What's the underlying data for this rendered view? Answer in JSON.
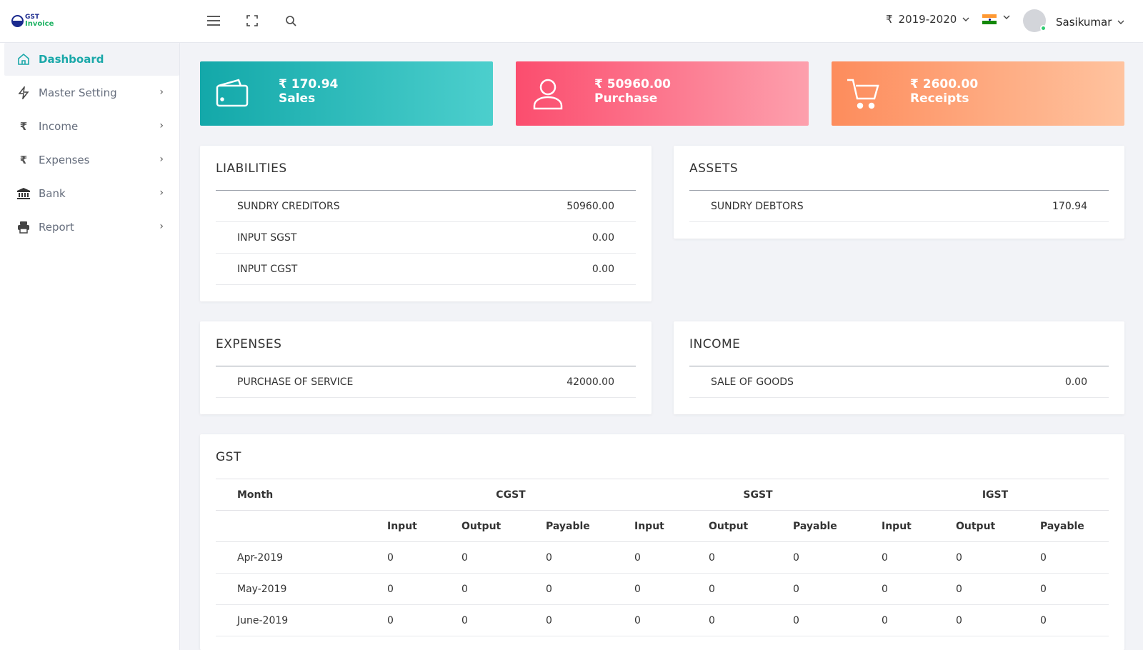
{
  "app": {
    "logo_line1": "GST",
    "logo_line2": "Invoice"
  },
  "header": {
    "currency_symbol": "₹",
    "financial_year": "2019-2020",
    "user_name": "Sasikumar",
    "icons": [
      "menu-icon",
      "fullscreen-icon",
      "search-icon",
      "chevron-down-icon",
      "india-flag-icon"
    ],
    "accent_color": "#1aa8a9"
  },
  "sidebar": {
    "items": [
      {
        "label": "Dashboard",
        "icon": "home-icon",
        "active": true
      },
      {
        "label": "Master Setting",
        "icon": "bolt-icon"
      },
      {
        "label": "Income",
        "icon": "rupee-icon"
      },
      {
        "label": "Expenses",
        "icon": "rupee-icon"
      },
      {
        "label": "Bank",
        "icon": "bank-icon"
      },
      {
        "label": "Report",
        "icon": "printer-icon"
      }
    ]
  },
  "stats": {
    "sales": {
      "amount": "₹ 170.94",
      "label": "Sales",
      "icon": "wallet-icon",
      "color": "#13a8a9"
    },
    "purchase": {
      "amount": "₹ 50960.00",
      "label": "Purchase",
      "icon": "user-icon",
      "color": "#fb4d6e"
    },
    "receipts": {
      "amount": "₹ 2600.00",
      "label": "Receipts",
      "icon": "cart-icon",
      "color": "#fd8c5c"
    }
  },
  "liabilities": {
    "title": "LIABILITIES",
    "rows": [
      {
        "name": "SUNDRY CREDITORS",
        "value": "50960.00"
      },
      {
        "name": "INPUT SGST",
        "value": "0.00"
      },
      {
        "name": "INPUT CGST",
        "value": "0.00"
      }
    ]
  },
  "assets": {
    "title": "ASSETS",
    "rows": [
      {
        "name": "SUNDRY DEBTORS",
        "value": "170.94"
      }
    ]
  },
  "expenses": {
    "title": "EXPENSES",
    "rows": [
      {
        "name": "PURCHASE OF SERVICE",
        "value": "42000.00"
      }
    ]
  },
  "income": {
    "title": "INCOME",
    "rows": [
      {
        "name": "SALE OF GOODS",
        "value": "0.00"
      }
    ]
  },
  "gst": {
    "title": "GST",
    "month_header": "Month",
    "groups": [
      "CGST",
      "SGST",
      "IGST"
    ],
    "sub_headers": [
      "Input",
      "Output",
      "Payable",
      "Input",
      "Output",
      "Payable",
      "Input",
      "Output",
      "Payable"
    ],
    "rows": [
      {
        "month": "Apr-2019",
        "values": [
          "0",
          "0",
          "0",
          "0",
          "0",
          "0",
          "0",
          "0",
          "0"
        ]
      },
      {
        "month": "May-2019",
        "values": [
          "0",
          "0",
          "0",
          "0",
          "0",
          "0",
          "0",
          "0",
          "0"
        ]
      },
      {
        "month": "June-2019",
        "values": [
          "0",
          "0",
          "0",
          "0",
          "0",
          "0",
          "0",
          "0",
          "0"
        ]
      }
    ]
  }
}
